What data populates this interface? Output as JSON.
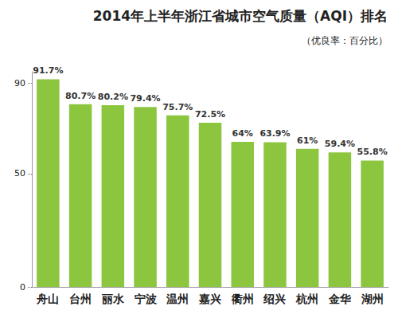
{
  "chart_data": {
    "type": "bar",
    "title": "2014年上半年浙江省城市空气质量（AQI）排名",
    "subtitle": "（优良率：百分比）",
    "categories": [
      "舟山",
      "台州",
      "丽水",
      "宁波",
      "温州",
      "嘉兴",
      "衢州",
      "绍兴",
      "杭州",
      "金华",
      "湖州"
    ],
    "values": [
      91.7,
      80.7,
      80.2,
      79.4,
      75.7,
      72.5,
      64,
      63.9,
      61,
      59.4,
      55.8
    ],
    "value_labels": [
      "91.7%",
      "80.7%",
      "80.2%",
      "79.4%",
      "75.7%",
      "72.5%",
      "64%",
      "63.9%",
      "61%",
      "59.4%",
      "55.8%"
    ],
    "color": "#8cc63f",
    "ylim": [
      0,
      95
    ],
    "yticks": [
      0,
      50,
      90
    ],
    "grid": false,
    "data_labels": true
  }
}
